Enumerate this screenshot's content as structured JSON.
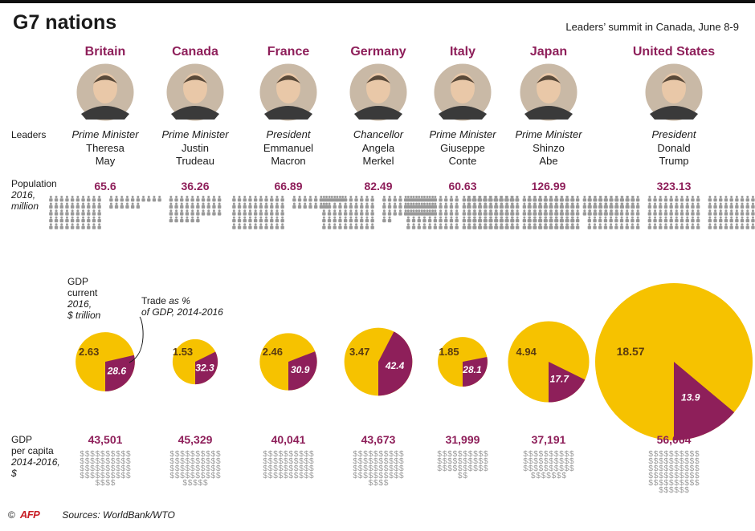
{
  "title": "G7 nations",
  "subtitle": "Leaders’ summit in Canada, June 8-9",
  "colors": {
    "accent": "#8e1f5a",
    "gdp_yellow": "#f6c200",
    "icon_gray": "#999999",
    "text": "#1a1a1a"
  },
  "row_labels": {
    "leaders": "Leaders",
    "population_1": "Population",
    "population_2": "2016,",
    "population_3": "million",
    "gdp_1": "GDP",
    "gdp_2": "current",
    "gdp_3": "2016,",
    "gdp_4": "$ trillion",
    "trade_1": "Trade",
    "trade_2": "as %",
    "trade_3": "of GDP, 2014-2016",
    "per_capita_1": "GDP",
    "per_capita_2": "per capita",
    "per_capita_3": "2014-2016,",
    "per_capita_4": "$"
  },
  "icons": {
    "person": "person-icon",
    "dollar": "dollar-sign-icon",
    "portrait": "leader-portrait"
  },
  "footer": {
    "copyright": "©",
    "logo_text": "AFP",
    "sources": "Sources: WorldBank/WTO"
  },
  "chart_data": {
    "type": "infographic",
    "units": {
      "population": "million, 2016",
      "gdp": "$ trillion, current 2016",
      "trade": "% of GDP, 2014-2016",
      "gdp_per_capita": "$, 2014-2016"
    },
    "countries": [
      {
        "name": "Britain",
        "leader_title": "Prime Minister",
        "leader_first": "Theresa",
        "leader_last": "May",
        "population": "65.6",
        "population_value": 65.6,
        "gdp": "2.63",
        "gdp_value": 2.63,
        "trade": "28.6",
        "trade_value": 28.6,
        "gdp_per_capita": "43,501",
        "gdp_per_capita_value": 43501
      },
      {
        "name": "Canada",
        "leader_title": "Prime Minister",
        "leader_first": "Justin",
        "leader_last": "Trudeau",
        "population": "36.26",
        "population_value": 36.26,
        "gdp": "1.53",
        "gdp_value": 1.53,
        "trade": "32.3",
        "trade_value": 32.3,
        "gdp_per_capita": "45,329",
        "gdp_per_capita_value": 45329
      },
      {
        "name": "France",
        "leader_title": "President",
        "leader_first": "Emmanuel",
        "leader_last": "Macron",
        "population": "66.89",
        "population_value": 66.89,
        "gdp": "2.46",
        "gdp_value": 2.46,
        "trade": "30.9",
        "trade_value": 30.9,
        "gdp_per_capita": "40,041",
        "gdp_per_capita_value": 40041
      },
      {
        "name": "Germany",
        "leader_title": "Chancellor",
        "leader_first": "Angela",
        "leader_last": "Merkel",
        "population": "82.49",
        "population_value": 82.49,
        "gdp": "3.47",
        "gdp_value": 3.47,
        "trade": "42.4",
        "trade_value": 42.4,
        "gdp_per_capita": "43,673",
        "gdp_per_capita_value": 43673
      },
      {
        "name": "Italy",
        "leader_title": "Prime Minister",
        "leader_first": "Giuseppe",
        "leader_last": "Conte",
        "population": "60.63",
        "population_value": 60.63,
        "gdp": "1.85",
        "gdp_value": 1.85,
        "trade": "28.1",
        "trade_value": 28.1,
        "gdp_per_capita": "31,999",
        "gdp_per_capita_value": 31999
      },
      {
        "name": "Japan",
        "leader_title": "Prime Minister",
        "leader_first": "Shinzo",
        "leader_last": "Abe",
        "population": "126.99",
        "population_value": 126.99,
        "gdp": "4.94",
        "gdp_value": 4.94,
        "trade": "17.7",
        "trade_value": 17.7,
        "gdp_per_capita": "37,191",
        "gdp_per_capita_value": 37191
      },
      {
        "name": "United States",
        "leader_title": "President",
        "leader_first": "Donald",
        "leader_last": "Trump",
        "population": "323.13",
        "population_value": 323.13,
        "gdp": "18.57",
        "gdp_value": 18.57,
        "trade": "13.9",
        "trade_value": 13.9,
        "gdp_per_capita": "56,064",
        "gdp_per_capita_value": 56064
      }
    ]
  }
}
